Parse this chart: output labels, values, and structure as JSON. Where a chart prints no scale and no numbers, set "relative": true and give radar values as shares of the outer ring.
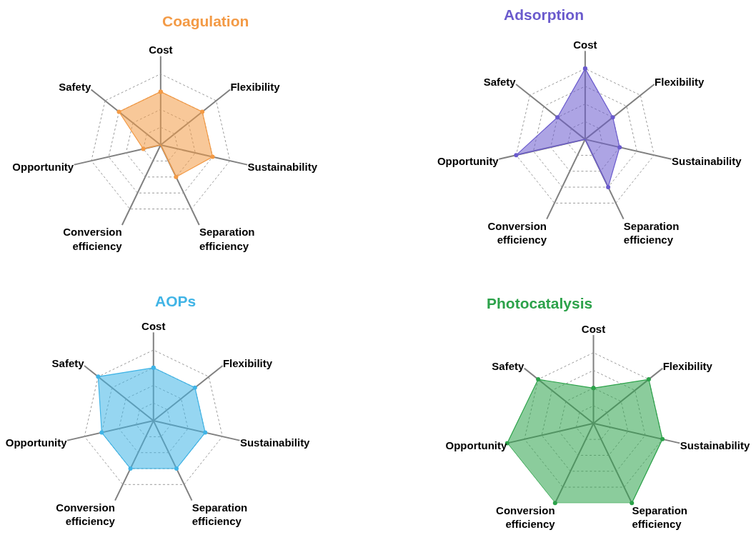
{
  "chart_data": [
    {
      "type": "radar",
      "title": "Coagulation",
      "relative": true,
      "grid": true,
      "marker": "circle",
      "categories": [
        "Cost",
        "Flexibility",
        "Sustainability",
        "Separation efficiency",
        "Conversion efficiency",
        "Opportunity",
        "Safety"
      ],
      "series": [
        {
          "color": "#f39a45",
          "values": [
            0.6,
            0.6,
            0.6,
            0.4,
            0,
            0.2,
            0.6
          ]
        }
      ]
    },
    {
      "type": "radar",
      "title": "Adsorption",
      "relative": true,
      "grid": true,
      "marker": "circle",
      "categories": [
        "Cost",
        "Flexibility",
        "Sustainability",
        "Separation efficiency",
        "Conversion efficiency",
        "Opportunity",
        "Safety"
      ],
      "series": [
        {
          "color": "#6a5acd",
          "values": [
            0.8,
            0.4,
            0.4,
            0.6,
            0,
            0.8,
            0.4
          ]
        }
      ]
    },
    {
      "type": "radar",
      "title": "AOPs",
      "relative": true,
      "grid": true,
      "marker": "circle",
      "categories": [
        "Cost",
        "Flexibility",
        "Sustainability",
        "Separation efficiency",
        "Conversion efficiency",
        "Opportunity",
        "Safety"
      ],
      "series": [
        {
          "color": "#40b4e6",
          "values": [
            0.6,
            0.6,
            0.6,
            0.6,
            0.6,
            0.6,
            0.8
          ]
        }
      ]
    },
    {
      "type": "radar",
      "title": "Photocatalysis",
      "relative": true,
      "grid": true,
      "marker": "circle",
      "categories": [
        "Cost",
        "Flexibility",
        "Sustainability",
        "Separation efficiency",
        "Conversion efficiency",
        "Opportunity",
        "Safety"
      ],
      "series": [
        {
          "color": "#2ca24a",
          "values": [
            0.4,
            0.8,
            0.8,
            1,
            1,
            1,
            0.8
          ]
        }
      ]
    }
  ]
}
